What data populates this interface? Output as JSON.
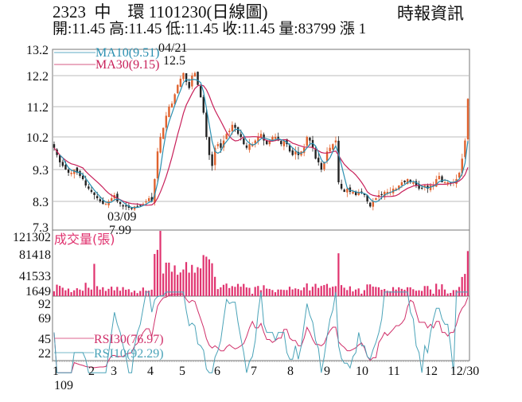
{
  "header": {
    "title": "2323  中    環 1101230(日線圖)",
    "source": "時報資訊",
    "ohlc": "開:11.45 高:11.45 低:11.45 收:11.45 量:83799 漲 1"
  },
  "colors": {
    "up_candle": "#e0622e",
    "down_candle": "#222222",
    "ma10": "#2a8fb0",
    "ma30": "#c8205a",
    "volume": "#e0336f",
    "rsi10": "#4aa3b8",
    "rsi30": "#d0306a",
    "grid": "#bbbbbb"
  },
  "chart_data": [
    {
      "type": "candlestick",
      "title": "2323 中環 日線圖 (price)",
      "ylabel": "",
      "yticks": [
        13.2,
        12.2,
        11.2,
        10.2,
        9.3,
        8.3,
        7.3
      ],
      "ylim": [
        7.3,
        13.2
      ],
      "grid": true,
      "legend": [
        {
          "name": "MA10",
          "value": 9.51,
          "label": "MA10(9.51)"
        },
        {
          "name": "MA30",
          "value": 9.15,
          "label": "MA30(9.15)"
        }
      ],
      "annotations": [
        {
          "date": "04/21",
          "value": 12.5,
          "label": "04/21",
          "sublabel": "12.5",
          "kind": "high"
        },
        {
          "date": "03/09",
          "value": 7.99,
          "label": "03/09",
          "sublabel": "7.99",
          "kind": "low"
        }
      ],
      "close_approx": [
        9.9,
        9.7,
        9.5,
        9.4,
        9.3,
        9.2,
        9.2,
        9.3,
        9.2,
        9.1,
        9.0,
        8.8,
        8.7,
        8.6,
        8.5,
        8.4,
        8.3,
        8.2,
        8.2,
        8.3,
        8.4,
        8.5,
        8.3,
        8.2,
        8.1,
        8.1,
        8.05,
        8.0,
        8.1,
        8.1,
        8.15,
        8.2,
        8.3,
        8.4,
        8.3,
        9.0,
        9.8,
        10.2,
        10.5,
        10.9,
        11.2,
        11.3,
        11.6,
        11.9,
        12.1,
        12.3,
        12.0,
        11.8,
        12.2,
        12.3,
        11.9,
        11.5,
        11.0,
        10.2,
        9.7,
        9.4,
        9.9,
        10.0,
        9.9,
        10.1,
        10.3,
        10.4,
        10.6,
        10.5,
        10.3,
        10.2,
        10.0,
        9.9,
        10.0,
        10.0,
        10.1,
        10.2,
        10.3,
        10.1,
        10.0,
        10.1,
        10.2,
        10.2,
        10.1,
        10.0,
        10.1,
        10.0,
        9.8,
        9.7,
        9.8,
        9.7,
        9.8,
        9.9,
        10.2,
        10.1,
        9.9,
        9.6,
        9.5,
        9.3,
        9.5,
        9.8,
        9.9,
        10.0,
        10.1,
        8.9,
        8.7,
        8.6,
        8.7,
        8.6,
        8.6,
        8.5,
        8.6,
        8.6,
        8.5,
        8.3,
        8.1,
        8.3,
        8.4,
        8.5,
        8.5,
        8.6,
        8.6,
        8.6,
        8.7,
        8.7,
        8.8,
        8.9,
        8.9,
        9.0,
        8.9,
        8.9,
        8.8,
        8.7,
        8.7,
        8.8,
        8.7,
        8.8,
        8.8,
        9.0,
        9.1,
        8.9,
        8.9,
        8.9,
        8.9,
        8.9,
        9.0,
        9.2,
        9.6,
        10.1,
        11.45
      ]
    },
    {
      "type": "bar",
      "title": "成交量(張)",
      "yticks": [
        121302,
        81418,
        41533,
        1649
      ],
      "ylim": [
        1649,
        121302
      ],
      "peak": {
        "date": "04",
        "value": 121302
      },
      "last_value": 83799
    },
    {
      "type": "line",
      "title": "RSI",
      "yticks": [
        92,
        69,
        45,
        22
      ],
      "ylim": [
        15,
        95
      ],
      "series": [
        {
          "name": "RSI30",
          "label": "RSI30(76.97)",
          "last": 76.97
        },
        {
          "name": "RSI10",
          "label": "RSI10(92.29)",
          "last": 92.29
        }
      ]
    }
  ],
  "x_axis": {
    "ticks": [
      "1",
      "2",
      "3",
      "4",
      "5",
      "6",
      "7",
      "8",
      "9",
      "10",
      "11",
      "12",
      "12/30"
    ],
    "year_label": "109"
  },
  "price_axis": {
    "labels": [
      "13.2",
      "12.2",
      "11.2",
      "10.2",
      "9.3",
      "8.3",
      "7.3"
    ]
  },
  "volume_axis": {
    "labels": [
      "121302",
      "81418",
      "41533",
      "1649"
    ],
    "title": "成交量(張)"
  },
  "rsi_axis": {
    "labels": [
      "92",
      "69",
      "45",
      "22"
    ]
  },
  "legends": {
    "ma10": "MA10(9.51)",
    "ma30": "MA30(9.15)",
    "rsi30": "RSI30(76.97)",
    "rsi10": "RSI10(92.29)",
    "high_date": "04/21",
    "high_value": "12.5",
    "low_date": "03/09",
    "low_value": "7.99"
  }
}
